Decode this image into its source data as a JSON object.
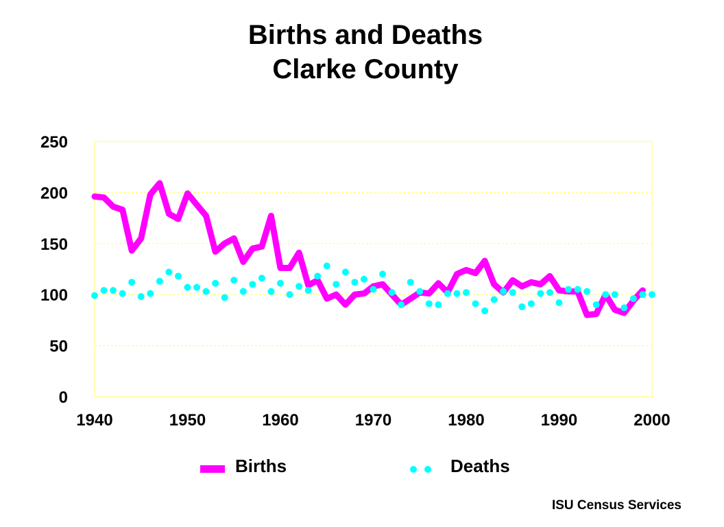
{
  "title_line1": "Births and Deaths",
  "title_line2": "Clarke County",
  "source": "ISU Census Services",
  "colors": {
    "births": "#ff00ff",
    "deaths": "#00ffff",
    "frame": "#ffff99",
    "grid": "#ffff66"
  },
  "chart_data": {
    "type": "line",
    "xlim": [
      1940,
      2000
    ],
    "ylim": [
      0,
      250
    ],
    "x_ticks": [
      "1940",
      "1950",
      "1960",
      "1970",
      "1980",
      "1990",
      "2000"
    ],
    "y_ticks": [
      "0",
      "50",
      "100",
      "150",
      "200",
      "250"
    ],
    "grid": true,
    "legend_placement": "bottom",
    "series": [
      {
        "name": "Births",
        "style": "thick line",
        "x": [
          1940,
          1941,
          1942,
          1943,
          1944,
          1945,
          1946,
          1947,
          1948,
          1949,
          1950,
          1951,
          1952,
          1953,
          1954,
          1955,
          1956,
          1957,
          1958,
          1959,
          1960,
          1961,
          1962,
          1963,
          1964,
          1965,
          1966,
          1967,
          1968,
          1969,
          1970,
          1971,
          1972,
          1973,
          1974,
          1975,
          1976,
          1977,
          1978,
          1979,
          1980,
          1981,
          1982,
          1983,
          1984,
          1985,
          1986,
          1987,
          1988,
          1989,
          1990,
          1991,
          1992,
          1993,
          1994,
          1995,
          1996,
          1997,
          1998,
          1999,
          2000
        ],
        "y": [
          196,
          195,
          186,
          183,
          143,
          155,
          198,
          209,
          179,
          174,
          199,
          188,
          177,
          142,
          150,
          155,
          132,
          145,
          147,
          177,
          126,
          126,
          141,
          109,
          114,
          96,
          100,
          90,
          100,
          101,
          108,
          110,
          100,
          90,
          96,
          102,
          101,
          111,
          102,
          120,
          124,
          121,
          133,
          110,
          102,
          114,
          108,
          112,
          110,
          118,
          104,
          103,
          103,
          80,
          81,
          100,
          85,
          82,
          94,
          104,
          null
        ]
      },
      {
        "name": "Deaths",
        "style": "dots",
        "x": [
          1940,
          1941,
          1942,
          1943,
          1944,
          1945,
          1946,
          1947,
          1948,
          1949,
          1950,
          1951,
          1952,
          1953,
          1954,
          1955,
          1956,
          1957,
          1958,
          1959,
          1960,
          1961,
          1962,
          1963,
          1964,
          1965,
          1966,
          1967,
          1968,
          1969,
          1970,
          1971,
          1972,
          1973,
          1974,
          1975,
          1976,
          1977,
          1978,
          1979,
          1980,
          1981,
          1982,
          1983,
          1984,
          1985,
          1986,
          1987,
          1988,
          1989,
          1990,
          1991,
          1992,
          1993,
          1994,
          1995,
          1996,
          1997,
          1998,
          1999,
          2000
        ],
        "y": [
          99,
          104,
          104,
          101,
          112,
          98,
          101,
          113,
          122,
          118,
          107,
          107,
          103,
          111,
          97,
          114,
          103,
          110,
          116,
          103,
          111,
          100,
          108,
          104,
          118,
          128,
          110,
          122,
          112,
          115,
          105,
          120,
          102,
          90,
          112,
          103,
          91,
          90,
          101,
          101,
          102,
          91,
          84,
          95,
          103,
          102,
          88,
          91,
          101,
          102,
          92,
          105,
          105,
          103,
          90,
          100,
          100,
          87,
          96,
          100,
          100
        ]
      }
    ]
  }
}
